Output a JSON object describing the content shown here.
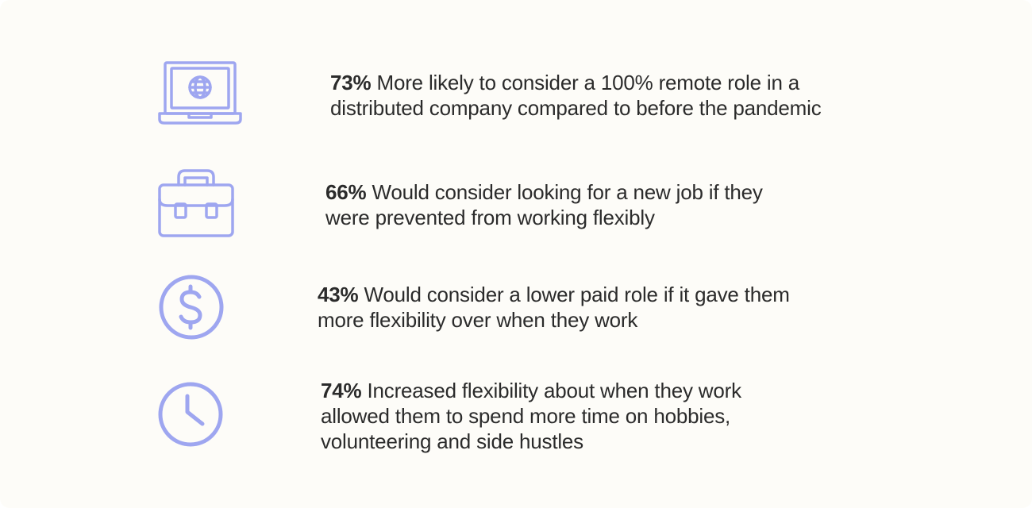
{
  "colors": {
    "icon_stroke": "#9ea6f0",
    "background": "#fdfcf8",
    "text": "#2b2b2b"
  },
  "stats": [
    {
      "icon": "laptop-globe-icon",
      "percent": "73%",
      "text": "More likely to consider a 100% remote role in a distributed company compared to before the pandemic"
    },
    {
      "icon": "briefcase-icon",
      "percent": "66%",
      "text": "Would consider looking for a new job if they were prevented from working flexibly"
    },
    {
      "icon": "dollar-icon",
      "percent": "43%",
      "text": "Would consider a lower paid role if it gave them more flexibility over when they work"
    },
    {
      "icon": "clock-icon",
      "percent": "74%",
      "text": "Increased flexibility about when they work allowed them to spend more time on hobbies, volunteering and side hustles"
    }
  ]
}
